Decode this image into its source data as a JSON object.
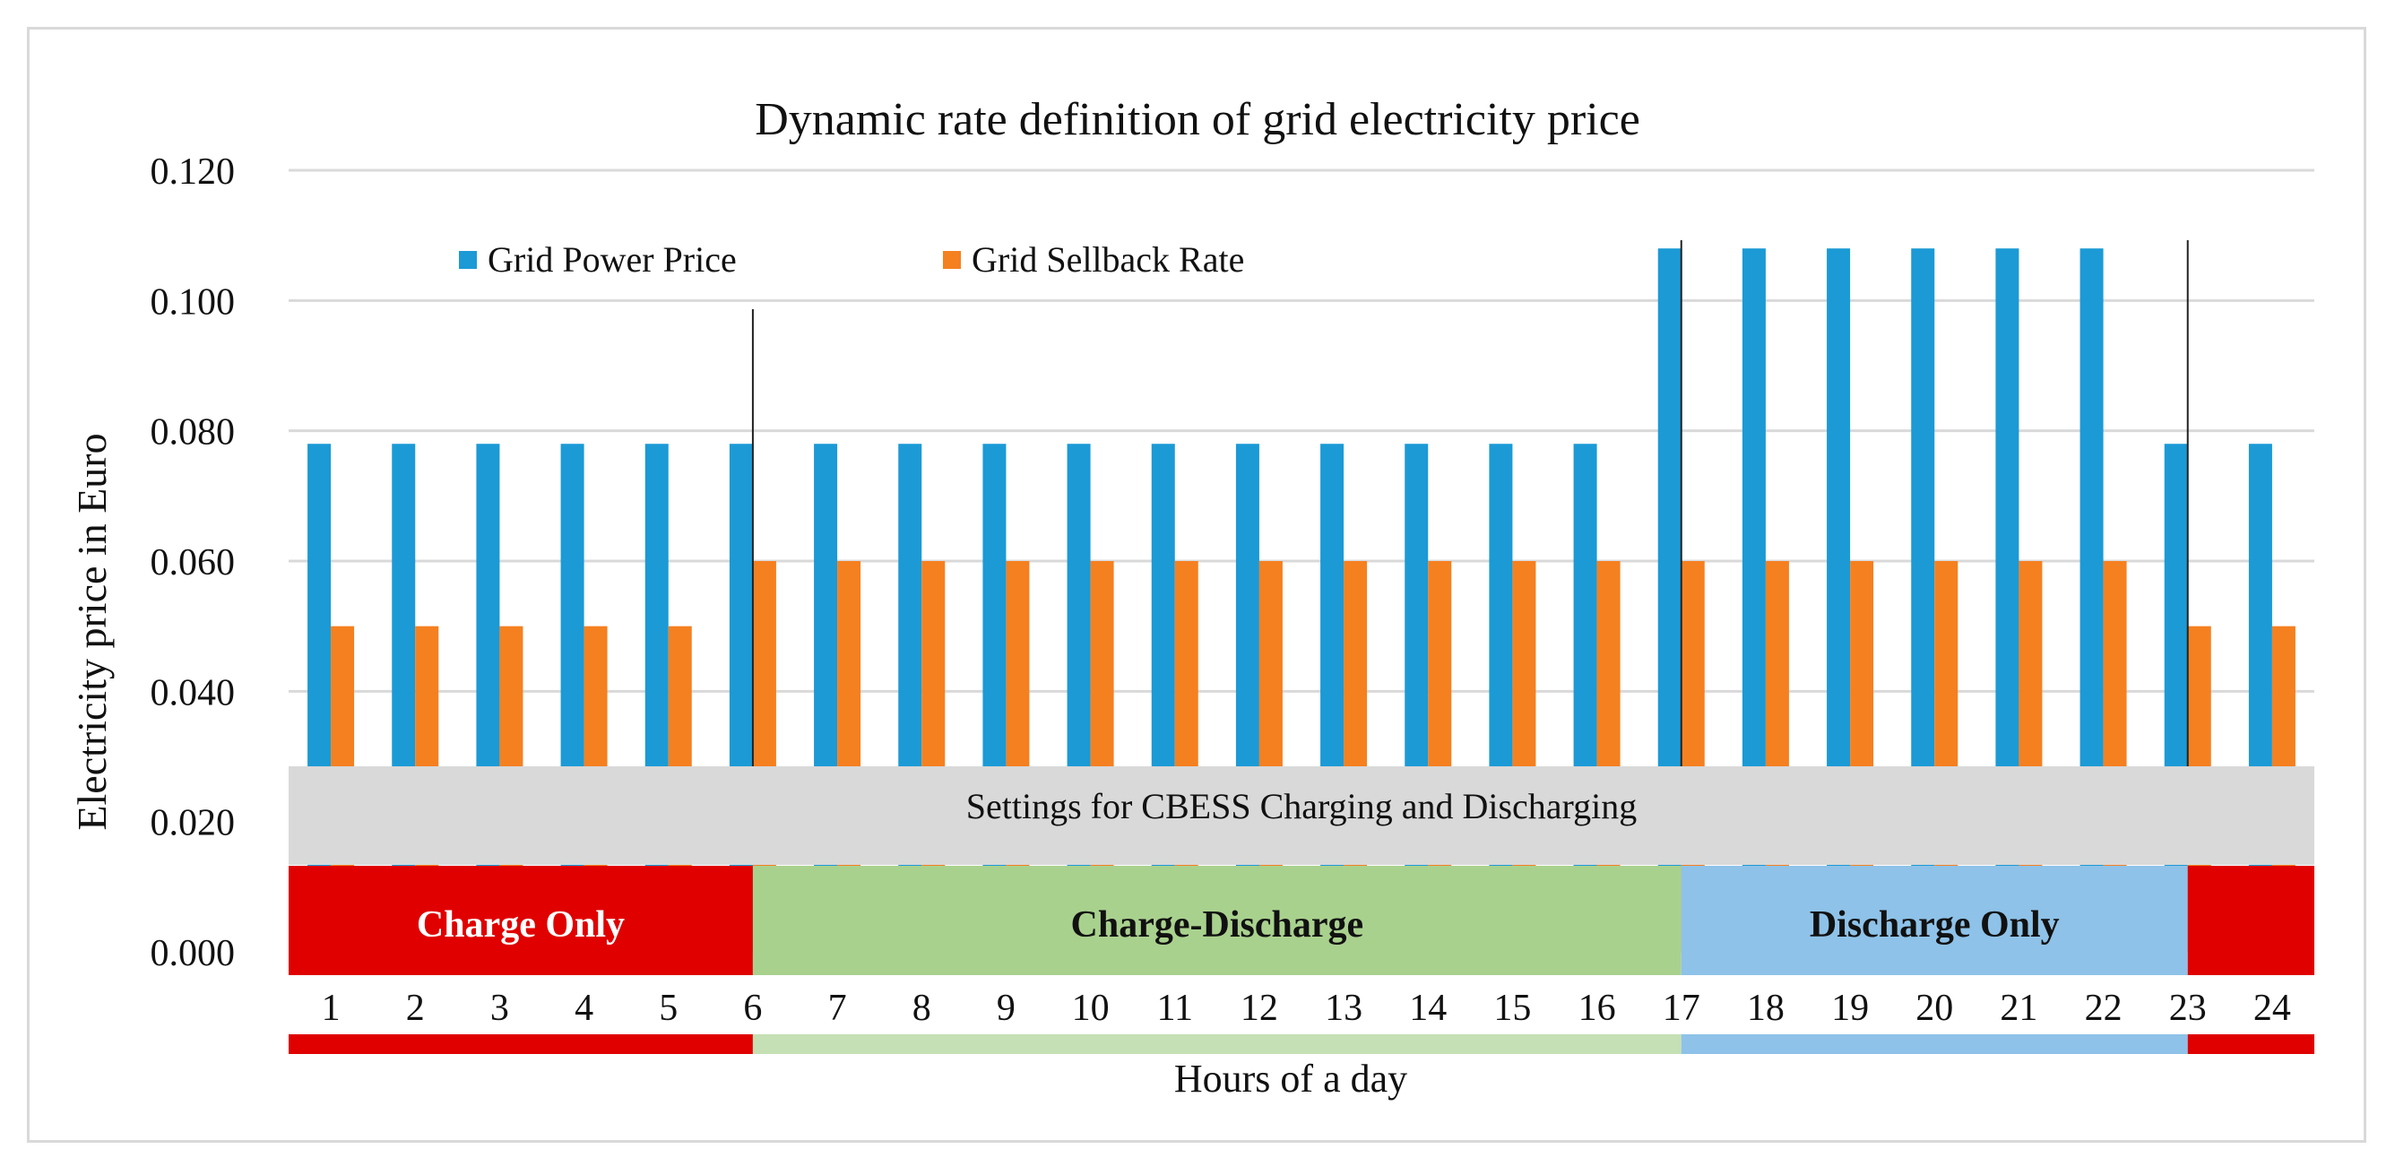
{
  "chart_data": {
    "type": "bar",
    "title": "Dynamic rate definition of grid electricity price",
    "xlabel": "Hours of a day",
    "ylabel": "Electricity  price in Euro",
    "ylim": [
      0,
      0.12
    ],
    "yticks": [
      0,
      0.02,
      0.04,
      0.06,
      0.08,
      0.1,
      0.12
    ],
    "ytick_labels": [
      "0.000",
      "0.020",
      "0.040",
      "0.060",
      "0.080",
      "0.100",
      "0.120"
    ],
    "gridlines": true,
    "legend_position": "top-left",
    "categories": [
      "1",
      "2",
      "3",
      "4",
      "5",
      "6",
      "7",
      "8",
      "9",
      "10",
      "11",
      "12",
      "13",
      "14",
      "15",
      "16",
      "17",
      "18",
      "19",
      "20",
      "21",
      "22",
      "23",
      "24"
    ],
    "series": [
      {
        "name": "Grid Power Price",
        "color": "#1b9ad6",
        "values": [
          0.078,
          0.078,
          0.078,
          0.078,
          0.078,
          0.078,
          0.078,
          0.078,
          0.078,
          0.078,
          0.078,
          0.078,
          0.078,
          0.078,
          0.078,
          0.078,
          0.108,
          0.108,
          0.108,
          0.108,
          0.108,
          0.108,
          0.078,
          0.078
        ]
      },
      {
        "name": "Grid Sellback Rate",
        "color": "#f58020",
        "values": [
          0.05,
          0.05,
          0.05,
          0.05,
          0.05,
          0.06,
          0.06,
          0.06,
          0.06,
          0.06,
          0.06,
          0.06,
          0.06,
          0.06,
          0.06,
          0.06,
          0.06,
          0.06,
          0.06,
          0.06,
          0.06,
          0.06,
          0.05,
          0.05
        ]
      }
    ],
    "boundary_hours": [
      6,
      17,
      23
    ],
    "settings_banner": "Settings for CBESS Charging and Discharging",
    "modes": [
      {
        "label": "Charge Only",
        "start_hour": 1,
        "end_hour": 6,
        "color": "#e00000",
        "text_color": "#ffffff"
      },
      {
        "label": "Charge-Discharge",
        "start_hour": 6,
        "end_hour": 17,
        "color": "#a9d18e",
        "text_color": "#111111"
      },
      {
        "label": "Discharge Only",
        "start_hour": 17,
        "end_hour": 23,
        "color": "#8ec2e8",
        "text_color": "#111111"
      },
      {
        "label": "",
        "start_hour": 23,
        "end_hour": 24,
        "color": "#e00000",
        "text_color": "#ffffff"
      }
    ],
    "strip_colors": [
      {
        "start_hour": 1,
        "end_hour": 6,
        "color": "#e00000"
      },
      {
        "start_hour": 6,
        "end_hour": 17,
        "color": "#c5e0b4"
      },
      {
        "start_hour": 17,
        "end_hour": 23,
        "color": "#8ec2e8"
      },
      {
        "start_hour": 23,
        "end_hour": 24,
        "color": "#e00000"
      }
    ]
  }
}
